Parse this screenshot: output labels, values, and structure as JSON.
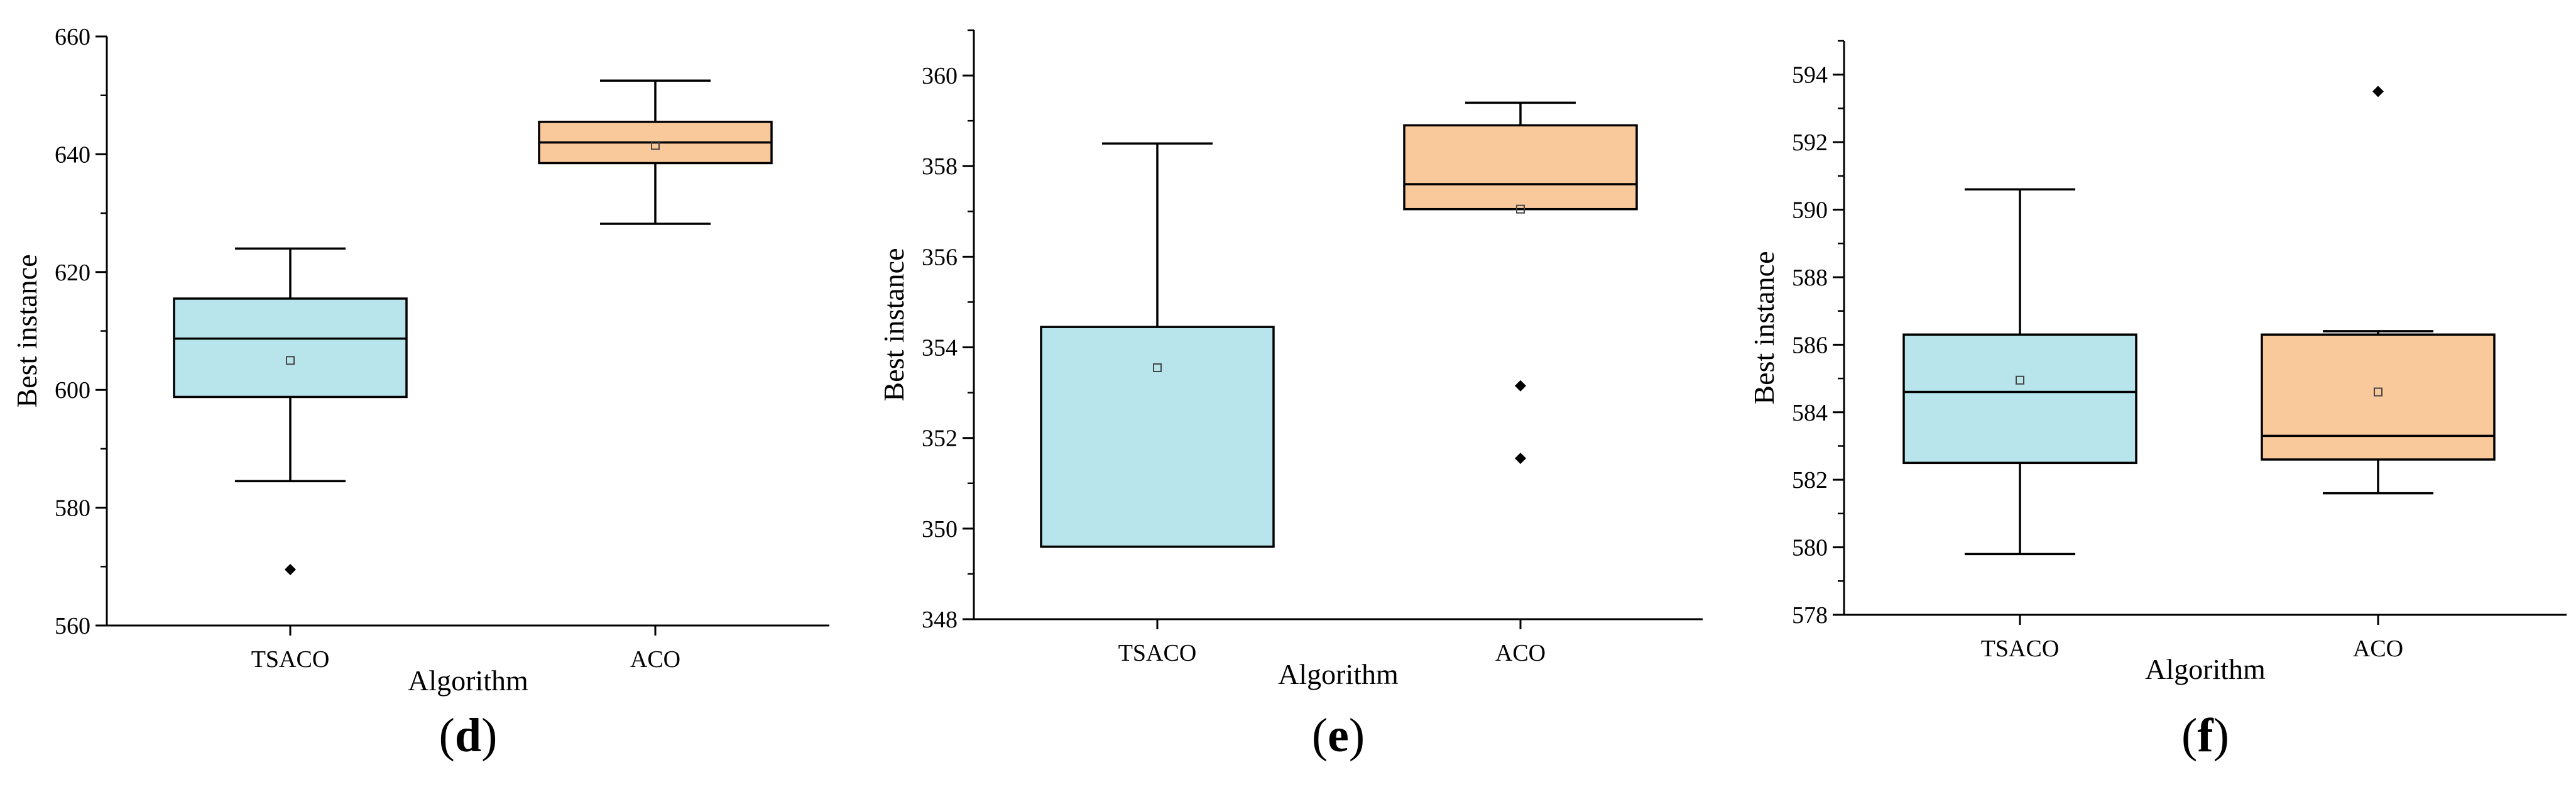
{
  "colors": {
    "series_fill": [
      "#b8e4ec",
      "#f9c99c"
    ],
    "axis": "#000000"
  },
  "chart_data": [
    {
      "type": "box",
      "panel_label": "d",
      "xlabel": "Algorithm",
      "ylabel": "Best instance",
      "categories": [
        "TSACO",
        "ACO"
      ],
      "ylim": [
        560,
        660
      ],
      "yticks": [
        560,
        580,
        600,
        620,
        640,
        660
      ],
      "ytick_labels": [
        "560",
        "580",
        "600",
        "620",
        "640",
        "660"
      ],
      "minor_step": 10,
      "boxes": [
        {
          "name": "TSACO",
          "whisker_low": 584.5,
          "q1": 598.8,
          "median": 608.7,
          "q3": 615.5,
          "whisker_high": 624.0,
          "mean": 605.0,
          "outliers": [
            569.5
          ]
        },
        {
          "name": "ACO",
          "whisker_low": 628.2,
          "q1": 638.5,
          "median": 642.0,
          "q3": 645.5,
          "whisker_high": 652.5,
          "mean": 641.5,
          "outliers": []
        }
      ]
    },
    {
      "type": "box",
      "panel_label": "e",
      "xlabel": "Algorithm",
      "ylabel": "Best instance",
      "categories": [
        "TSACO",
        "ACO"
      ],
      "ylim": [
        348,
        361
      ],
      "yticks": [
        348,
        350,
        352,
        354,
        356,
        358,
        360
      ],
      "ytick_labels": [
        "348",
        "350",
        "352",
        "354",
        "356",
        "358",
        "360"
      ],
      "minor_step": 1,
      "boxes": [
        {
          "name": "TSACO",
          "whisker_low": 349.6,
          "q1": 349.6,
          "median": 349.6,
          "q3": 354.45,
          "whisker_high": 358.5,
          "mean": 353.55,
          "outliers": []
        },
        {
          "name": "ACO",
          "whisker_low": 357.05,
          "q1": 357.05,
          "median": 357.6,
          "q3": 358.9,
          "whisker_high": 359.4,
          "mean": 357.05,
          "outliers": [
            353.15,
            351.55
          ]
        }
      ]
    },
    {
      "type": "box",
      "panel_label": "f",
      "xlabel": "Algorithm",
      "ylabel": "Best instance",
      "categories": [
        "TSACO",
        "ACO"
      ],
      "ylim": [
        578,
        595
      ],
      "yticks": [
        578,
        580,
        582,
        584,
        586,
        588,
        590,
        592,
        594
      ],
      "ytick_labels": [
        "578",
        "580",
        "582",
        "584",
        "586",
        "588",
        "590",
        "592",
        "594"
      ],
      "minor_step": 1,
      "boxes": [
        {
          "name": "TSACO",
          "whisker_low": 579.8,
          "q1": 582.5,
          "median": 584.6,
          "q3": 586.3,
          "whisker_high": 590.6,
          "mean": 584.95,
          "outliers": []
        },
        {
          "name": "ACO",
          "whisker_low": 581.6,
          "q1": 582.6,
          "median": 583.3,
          "q3": 586.3,
          "whisker_high": 586.4,
          "mean": 584.6,
          "outliers": [
            593.5
          ]
        }
      ]
    }
  ]
}
